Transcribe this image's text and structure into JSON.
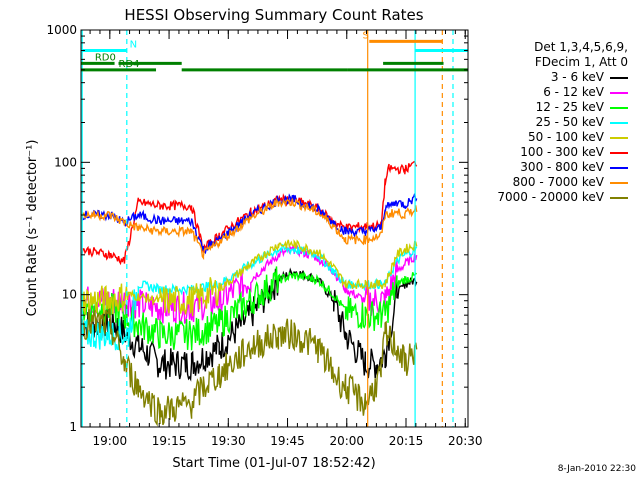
{
  "chart_data": {
    "type": "line",
    "title": "HESSI Observing Summary Count Rates",
    "xlabel": "Start Time (01-Jul-07 18:52:42)",
    "ylabel": "Count Rate (s⁻¹ detector⁻¹)",
    "yscale": "log",
    "ylim": [
      1,
      1000
    ],
    "xlim_minutes": [
      0,
      98
    ],
    "x_ticks": [
      {
        "label": "19:00",
        "t": 7.3
      },
      {
        "label": "19:15",
        "t": 22.3
      },
      {
        "label": "19:30",
        "t": 37.3
      },
      {
        "label": "19:45",
        "t": 52.3
      },
      {
        "label": "20:00",
        "t": 67.3
      },
      {
        "label": "20:15",
        "t": 82.3
      },
      {
        "label": "20:30",
        "t": 97.3
      }
    ],
    "y_ticks": [
      {
        "label": "1",
        "v": 1
      },
      {
        "label": "10",
        "v": 10
      },
      {
        "label": "100",
        "v": 100
      },
      {
        "label": "1000",
        "v": 1000
      }
    ],
    "legend_header": [
      "Det 1,3,4,5,6,9,",
      "FDecim 1, Att 0"
    ],
    "series": [
      {
        "name": "3 - 6 keV",
        "color": "#000000",
        "points": [
          [
            0,
            6
          ],
          [
            7.3,
            6
          ],
          [
            8.5,
            6
          ],
          [
            15,
            4
          ],
          [
            20,
            3
          ],
          [
            28,
            3
          ],
          [
            35,
            4
          ],
          [
            43,
            7
          ],
          [
            50,
            13
          ],
          [
            54,
            15
          ],
          [
            60,
            13
          ],
          [
            64,
            9
          ],
          [
            67,
            5
          ],
          [
            72,
            3
          ],
          [
            75,
            3
          ],
          [
            77,
            3.5
          ],
          [
            80,
            10
          ],
          [
            82,
            12
          ],
          [
            85,
            13
          ]
        ]
      },
      {
        "name": "6 - 12 keV",
        "color": "#ff00ff",
        "points": [
          [
            0,
            9
          ],
          [
            12,
            9
          ],
          [
            14.5,
            8.5
          ],
          [
            20,
            8
          ],
          [
            28,
            8
          ],
          [
            35,
            9
          ],
          [
            43,
            13
          ],
          [
            50,
            20
          ],
          [
            54,
            22
          ],
          [
            60,
            19
          ],
          [
            64,
            15
          ],
          [
            67,
            11
          ],
          [
            72,
            9
          ],
          [
            76,
            9
          ],
          [
            77,
            9
          ],
          [
            80,
            15
          ],
          [
            82,
            17
          ],
          [
            85,
            20
          ]
        ]
      },
      {
        "name": "12 - 25 keV",
        "color": "#00ff00",
        "points": [
          [
            0,
            8
          ],
          [
            7.3,
            8
          ],
          [
            11,
            7
          ],
          [
            14.5,
            6
          ],
          [
            20,
            5
          ],
          [
            28,
            5
          ],
          [
            35,
            6
          ],
          [
            43,
            9
          ],
          [
            50,
            13
          ],
          [
            54,
            14
          ],
          [
            60,
            13
          ],
          [
            64,
            10
          ],
          [
            67,
            7.5
          ],
          [
            72,
            7
          ],
          [
            76,
            7
          ],
          [
            77,
            7
          ],
          [
            80,
            12
          ],
          [
            82,
            13
          ],
          [
            85,
            14
          ]
        ]
      },
      {
        "name": "25 - 50 keV",
        "color": "#00ffff",
        "points": [
          [
            0,
            5
          ],
          [
            12,
            5
          ],
          [
            14.5,
            12
          ],
          [
            20,
            11
          ],
          [
            28,
            11
          ],
          [
            35,
            12
          ],
          [
            43,
            17
          ],
          [
            50,
            22
          ],
          [
            54,
            22
          ],
          [
            60,
            20
          ],
          [
            64,
            15
          ],
          [
            67,
            12
          ],
          [
            72,
            12
          ],
          [
            76,
            12
          ],
          [
            77,
            12
          ],
          [
            80,
            18
          ],
          [
            82,
            20
          ],
          [
            85,
            22
          ]
        ]
      },
      {
        "name": "50 - 100 keV",
        "color": "#cccc00",
        "points": [
          [
            0,
            9
          ],
          [
            7.3,
            9
          ],
          [
            12,
            10
          ],
          [
            20,
            9
          ],
          [
            28,
            9
          ],
          [
            35,
            11
          ],
          [
            43,
            17
          ],
          [
            50,
            24
          ],
          [
            54,
            24
          ],
          [
            60,
            21
          ],
          [
            64,
            16
          ],
          [
            67,
            12
          ],
          [
            72,
            12
          ],
          [
            76,
            12
          ],
          [
            77,
            12
          ],
          [
            80,
            20
          ],
          [
            82,
            22
          ],
          [
            85,
            24
          ]
        ]
      },
      {
        "name": "100 - 300 keV",
        "color": "#ff0000",
        "points": [
          [
            0,
            22
          ],
          [
            7.3,
            20
          ],
          [
            11,
            18
          ],
          [
            14.5,
            50
          ],
          [
            20,
            47
          ],
          [
            28,
            47
          ],
          [
            31,
            22
          ],
          [
            35,
            28
          ],
          [
            43,
            42
          ],
          [
            50,
            52
          ],
          [
            54,
            52
          ],
          [
            60,
            45
          ],
          [
            64,
            35
          ],
          [
            67,
            32
          ],
          [
            72,
            33
          ],
          [
            76,
            33
          ],
          [
            77,
            70
          ],
          [
            78,
            90
          ],
          [
            82,
            88
          ],
          [
            85,
            100
          ]
        ]
      },
      {
        "name": "300 - 800 keV",
        "color": "#0000ff",
        "points": [
          [
            0,
            40
          ],
          [
            7.3,
            40
          ],
          [
            11,
            35
          ],
          [
            14.5,
            40
          ],
          [
            20,
            36
          ],
          [
            28,
            36
          ],
          [
            31,
            22
          ],
          [
            35,
            26
          ],
          [
            43,
            40
          ],
          [
            50,
            52
          ],
          [
            54,
            52
          ],
          [
            60,
            44
          ],
          [
            64,
            35
          ],
          [
            67,
            30
          ],
          [
            72,
            30
          ],
          [
            76,
            32
          ],
          [
            77,
            45
          ],
          [
            80,
            50
          ],
          [
            82,
            48
          ],
          [
            85,
            55
          ]
        ]
      },
      {
        "name": "800 - 7000 keV",
        "color": "#ff8c00",
        "points": [
          [
            0,
            40
          ],
          [
            7.3,
            40
          ],
          [
            11,
            35
          ],
          [
            14.5,
            32
          ],
          [
            20,
            30
          ],
          [
            28,
            30
          ],
          [
            31,
            20
          ],
          [
            35,
            25
          ],
          [
            43,
            38
          ],
          [
            50,
            50
          ],
          [
            54,
            50
          ],
          [
            60,
            42
          ],
          [
            64,
            33
          ],
          [
            67,
            26
          ],
          [
            72,
            26
          ],
          [
            76,
            28
          ],
          [
            77,
            40
          ],
          [
            80,
            42
          ],
          [
            82,
            40
          ],
          [
            85,
            45
          ]
        ]
      },
      {
        "name": "7000 - 20000 keV",
        "color": "#808000",
        "points": [
          [
            0,
            6
          ],
          [
            7.3,
            6
          ],
          [
            11,
            3
          ],
          [
            14.5,
            2
          ],
          [
            20,
            1.3
          ],
          [
            28,
            1.5
          ],
          [
            31,
            2
          ],
          [
            35,
            2.5
          ],
          [
            43,
            4
          ],
          [
            50,
            5
          ],
          [
            54,
            5
          ],
          [
            60,
            4
          ],
          [
            64,
            2.5
          ],
          [
            67,
            2
          ],
          [
            72,
            1.5
          ],
          [
            76,
            2.5
          ],
          [
            77,
            5
          ],
          [
            80,
            4
          ],
          [
            82,
            3
          ],
          [
            85,
            4
          ]
        ]
      }
    ],
    "vertical_markers": [
      {
        "t": 0.3,
        "color": "#00ffff",
        "style": "solid"
      },
      {
        "t": 11.6,
        "color": "#00ffff",
        "style": "dash"
      },
      {
        "t": 72.6,
        "color": "#ff8c00",
        "style": "solid"
      },
      {
        "t": 84.6,
        "color": "#00ffff",
        "style": "solid"
      },
      {
        "t": 91.5,
        "color": "#ff8c00",
        "style": "dash"
      },
      {
        "t": 94.2,
        "color": "#00ffff",
        "style": "dash"
      }
    ],
    "status_bars": [
      {
        "label": "N",
        "color": "#00ffff",
        "segments": [
          [
            0.3,
            11.6
          ],
          [
            84.6,
            98
          ]
        ],
        "level": 700,
        "label_t": 12.3
      },
      {
        "label": "RD0",
        "color": "#008000",
        "segments": [
          [
            0,
            8.5
          ],
          [
            9.5,
            25.5
          ],
          [
            76.5,
            91.8
          ]
        ],
        "level": 560,
        "label_t": 3.5
      },
      {
        "label": "RD4",
        "color": "#008000",
        "segments": [
          [
            0,
            19
          ],
          [
            25.5,
            67.5
          ],
          [
            67.5,
            91.8
          ],
          [
            91.8,
            98
          ]
        ],
        "level": 500,
        "label_t": 9.5
      },
      {
        "label": "S",
        "color": "#ff8c00",
        "segments": [
          [
            73,
            91.5
          ]
        ],
        "level": 820,
        "label_t": 71.3
      }
    ],
    "timestamp": "8-Jan-2010 22:30"
  }
}
